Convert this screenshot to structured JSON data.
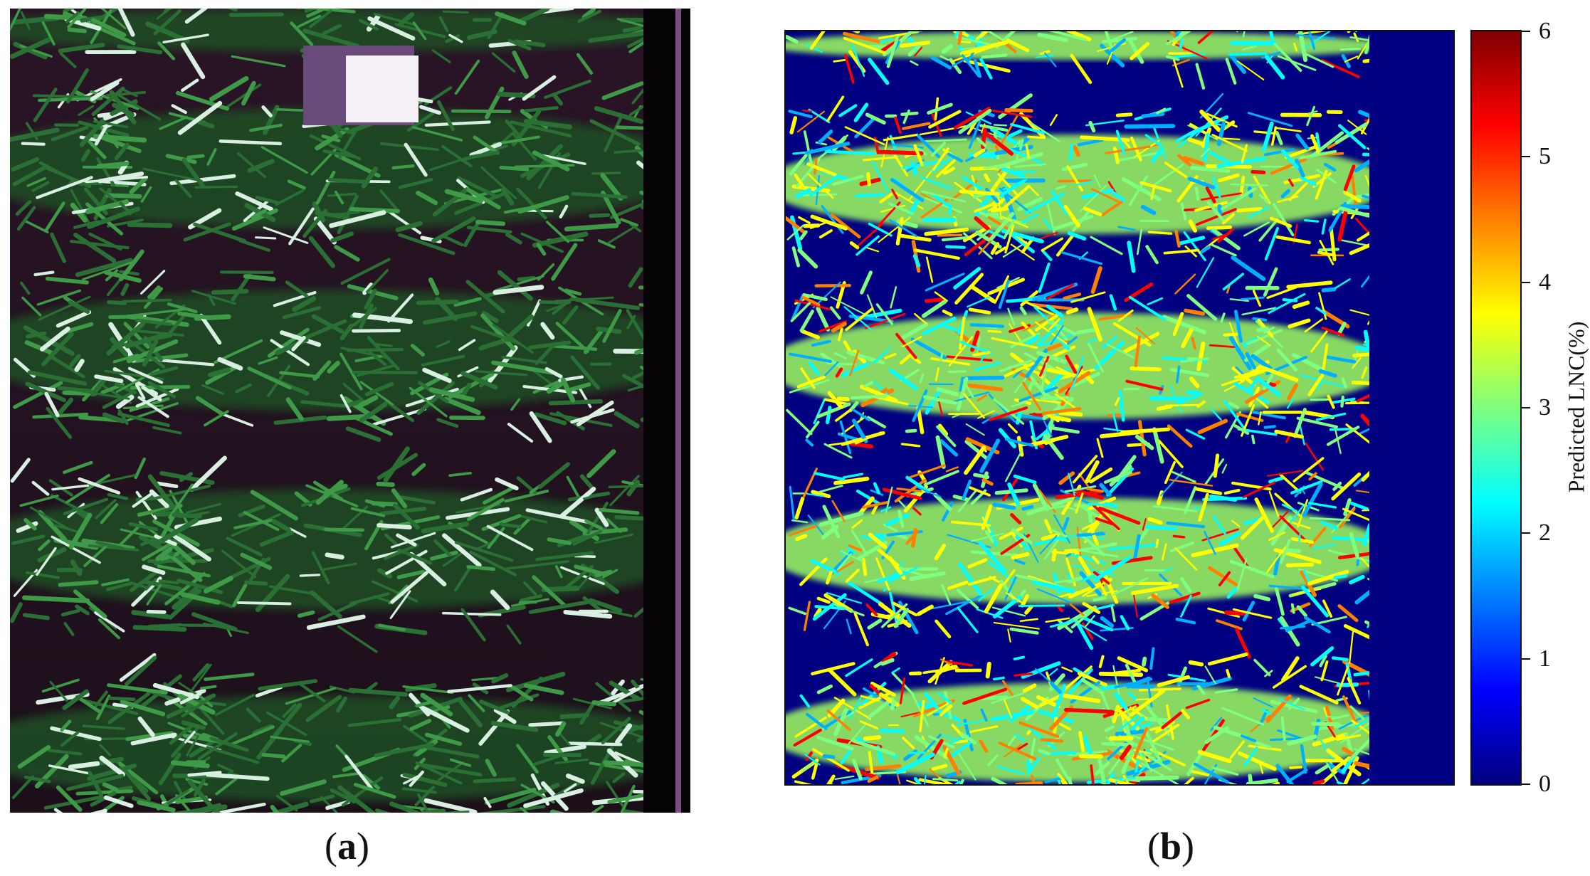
{
  "panels": [
    {
      "id": "a",
      "caption": "(a)",
      "caption_letter": "a",
      "description_icon": "wheat-rgb-photo"
    },
    {
      "id": "b",
      "caption": "(b)",
      "caption_letter": "b",
      "description_icon": "lnc-prediction-map"
    }
  ],
  "colorbar": {
    "label": "Predicted LNC(%)",
    "ticks": [
      "0",
      "1",
      "2",
      "3",
      "4",
      "5",
      "6"
    ],
    "min": 0,
    "max": 6,
    "colormap": "jet"
  },
  "colors": {
    "soil": "#1a0d17",
    "crop_green": "#2f7a3a",
    "map_background": "#000080"
  }
}
